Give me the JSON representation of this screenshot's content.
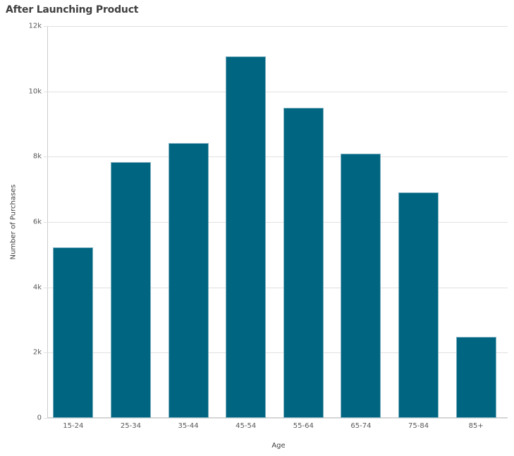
{
  "chart_data": {
    "type": "bar",
    "title": "After Launching Product",
    "xlabel": "Age",
    "ylabel": "Number of Purchases",
    "categories": [
      "15-24",
      "25-34",
      "35-44",
      "45-54",
      "55-64",
      "65-74",
      "75-84",
      "85+"
    ],
    "values": [
      5220,
      7830,
      8420,
      11070,
      9500,
      8090,
      6910,
      2480
    ],
    "ylim": [
      0,
      12000
    ],
    "yticks": [
      0,
      2000,
      4000,
      6000,
      8000,
      10000,
      12000
    ],
    "ytick_labels": [
      "0",
      "2k",
      "4k",
      "6k",
      "8k",
      "10k",
      "12k"
    ],
    "grid": true,
    "legend": null,
    "bar_color": "#006580"
  }
}
